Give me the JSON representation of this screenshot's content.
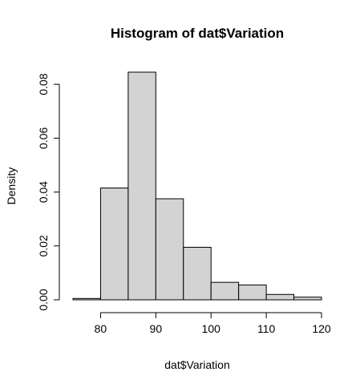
{
  "chart_data": {
    "type": "bar",
    "title": "Histogram of dat$Variation",
    "xlabel": "dat$Variation",
    "ylabel": "Density",
    "bins": [
      {
        "start": 75,
        "end": 80,
        "density": 0.0005
      },
      {
        "start": 80,
        "end": 85,
        "density": 0.0415
      },
      {
        "start": 85,
        "end": 90,
        "density": 0.0845
      },
      {
        "start": 90,
        "end": 95,
        "density": 0.0375
      },
      {
        "start": 95,
        "end": 100,
        "density": 0.0195
      },
      {
        "start": 100,
        "end": 105,
        "density": 0.0065
      },
      {
        "start": 105,
        "end": 110,
        "density": 0.0055
      },
      {
        "start": 110,
        "end": 115,
        "density": 0.002
      },
      {
        "start": 115,
        "end": 120,
        "density": 0.001
      }
    ],
    "xlim": [
      75,
      120
    ],
    "ylim": [
      0,
      0.0845
    ],
    "x_ticks": [
      80,
      90,
      100,
      110,
      120
    ],
    "y_ticks": [
      0.0,
      0.02,
      0.04,
      0.06,
      0.08
    ],
    "y_tick_labels": [
      "0.00",
      "0.02",
      "0.04",
      "0.06",
      "0.08"
    ],
    "colors": {
      "bar_fill": "#d3d3d3",
      "bar_stroke": "#000000"
    }
  }
}
